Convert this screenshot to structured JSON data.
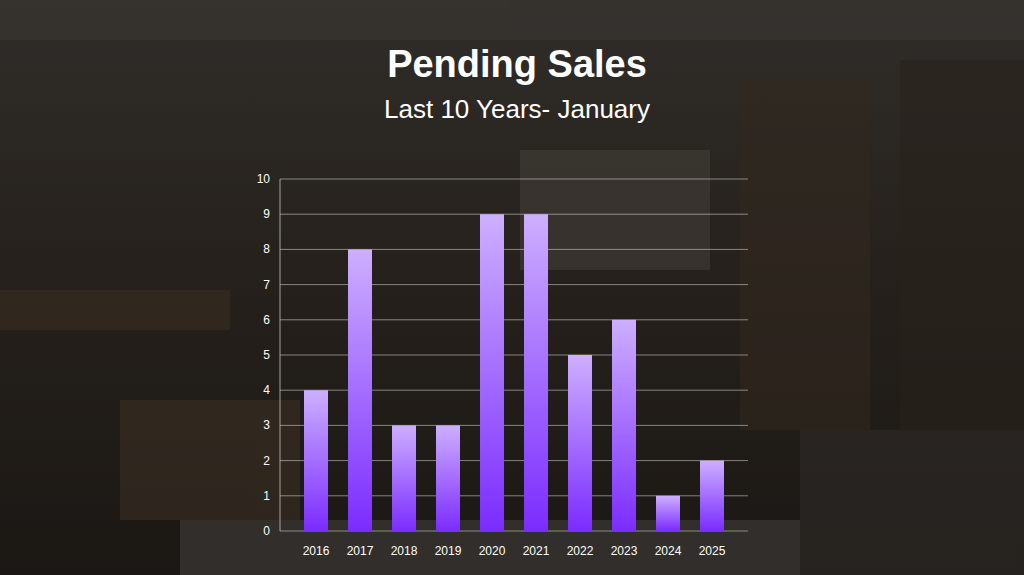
{
  "chart_data": {
    "type": "bar",
    "title": "Pending Sales",
    "subtitle": "Last 10 Years- January",
    "categories": [
      "2016",
      "2017",
      "2018",
      "2019",
      "2020",
      "2021",
      "2022",
      "2023",
      "2024",
      "2025"
    ],
    "values": [
      4,
      8,
      3,
      3,
      9,
      9,
      5,
      6,
      1,
      2
    ],
    "color": "#7b2cff",
    "ylim": [
      0,
      10
    ],
    "yticks": [
      0,
      1,
      2,
      3,
      4,
      5,
      6,
      7,
      8,
      9,
      10
    ],
    "grid": true
  }
}
